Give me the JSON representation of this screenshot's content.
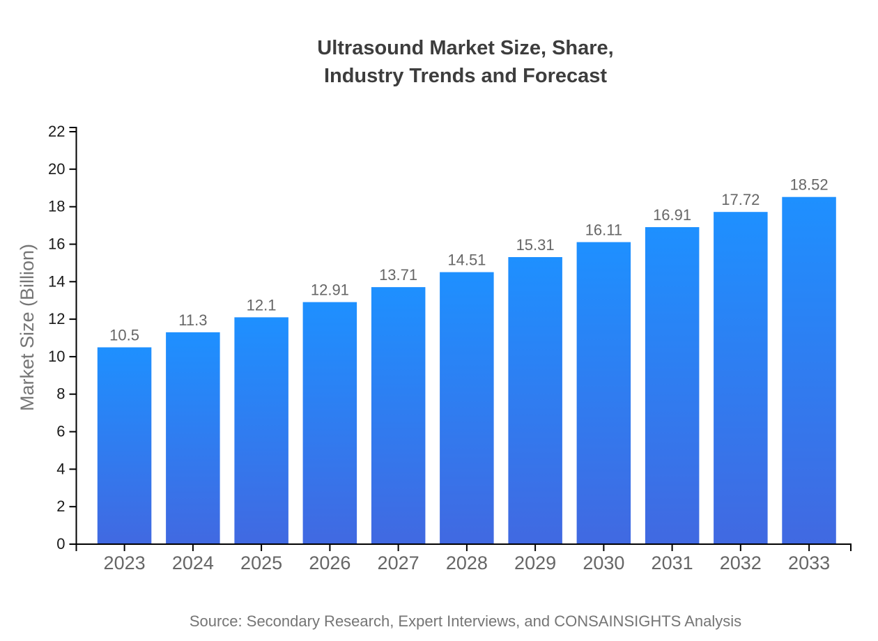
{
  "header": {
    "title_line1": "Ultrasound Market Size, Share,",
    "title_line2": "Industry Trends and Forecast"
  },
  "footer": {
    "source": "Source: Secondary Research, Expert Interviews, and CONSAINSIGHTS Analysis"
  },
  "chart_data": {
    "type": "bar",
    "title": "Ultrasound Market Size, Share, Industry Trends and Forecast",
    "categories": [
      "2023",
      "2024",
      "2025",
      "2026",
      "2027",
      "2028",
      "2029",
      "2030",
      "2031",
      "2032",
      "2033"
    ],
    "values": [
      10.5,
      11.3,
      12.1,
      12.91,
      13.71,
      14.51,
      15.31,
      16.11,
      16.91,
      17.72,
      18.52
    ],
    "xlabel": "",
    "ylabel": "Market Size (Billion)",
    "ylim": [
      0,
      22.224
    ],
    "yticks": [
      0,
      2,
      4,
      6,
      8,
      10,
      12,
      14,
      16,
      18,
      20,
      22
    ],
    "grid": false,
    "legend": false,
    "colors": {
      "bar_gradient_top": "#1E90FF",
      "bar_gradient_bottom": "#4169E1",
      "axis": "#000000",
      "y_tick_label": "#1a1a1a",
      "x_tick_label": "#666666",
      "value_label": "#666666",
      "title": "#3d3d3d",
      "axis_label": "#757575",
      "source": "#757575"
    }
  }
}
